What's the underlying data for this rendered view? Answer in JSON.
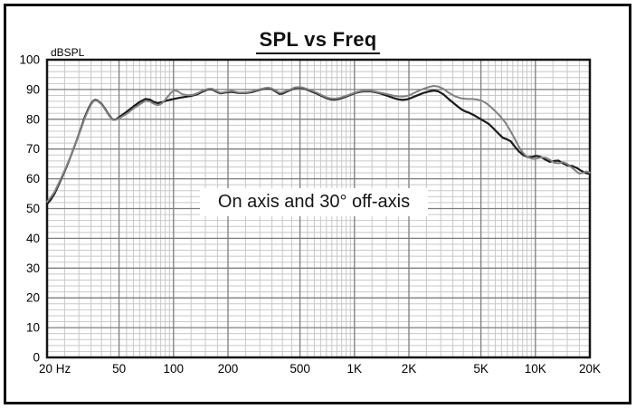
{
  "figure": {
    "title": "SPL vs Freq",
    "annotation": "On axis and 30° off-axis"
  },
  "chart_data": {
    "type": "line",
    "title": "SPL vs Freq",
    "xlabel": "",
    "ylabel": "dBSPL",
    "x_scale": "log",
    "xlim": [
      20,
      20000
    ],
    "ylim": [
      0,
      100
    ],
    "grid": {
      "minor_color": "#c8c8c8",
      "major_color": "#7d7d7d",
      "y_minor_step": 2,
      "y_major_step": 10,
      "x_minor_multipliers": [
        1.25,
        1.5,
        1.75,
        2.5,
        3,
        3.5,
        4,
        4.5,
        5.5,
        6,
        6.5,
        7,
        7.5,
        8,
        8.5,
        9,
        9.5
      ],
      "x_decades": [
        10,
        100,
        1000,
        10000
      ]
    },
    "y_ticks": [
      0,
      10,
      20,
      30,
      40,
      50,
      60,
      70,
      80,
      90,
      100
    ],
    "x_ticks": [
      {
        "value": 20,
        "label": "20 Hz"
      },
      {
        "value": 50,
        "label": "50"
      },
      {
        "value": 100,
        "label": "100"
      },
      {
        "value": 200,
        "label": "200"
      },
      {
        "value": 500,
        "label": "500"
      },
      {
        "value": 1000,
        "label": "1K"
      },
      {
        "value": 2000,
        "label": "2K"
      },
      {
        "value": 5000,
        "label": "5K"
      },
      {
        "value": 10000,
        "label": "10K"
      },
      {
        "value": 20000,
        "label": "20K"
      }
    ],
    "annotation": "On axis and 30° off-axis",
    "series": [
      {
        "name": "On axis",
        "key": "on-axis",
        "color": "#1a1a1a",
        "width": 2.2,
        "points": [
          [
            20,
            51.5
          ],
          [
            21,
            53
          ],
          [
            22,
            55
          ],
          [
            23,
            57.5
          ],
          [
            24,
            60
          ],
          [
            25,
            62.5
          ],
          [
            26,
            65
          ],
          [
            27,
            67.5
          ],
          [
            28,
            70
          ],
          [
            29,
            72.5
          ],
          [
            30,
            75
          ],
          [
            31,
            77.5
          ],
          [
            32,
            80
          ],
          [
            33,
            82
          ],
          [
            34,
            83.8
          ],
          [
            35,
            85.2
          ],
          [
            36,
            86.2
          ],
          [
            37,
            86.5
          ],
          [
            38,
            86.3
          ],
          [
            40,
            85.2
          ],
          [
            42,
            83.4
          ],
          [
            44,
            81.4
          ],
          [
            46,
            79.9
          ],
          [
            48,
            79.9
          ],
          [
            50,
            80.7
          ],
          [
            55,
            82.5
          ],
          [
            60,
            84.3
          ],
          [
            65,
            85.8
          ],
          [
            70,
            86.8
          ],
          [
            74,
            86.6
          ],
          [
            78,
            85.8
          ],
          [
            82,
            85.4
          ],
          [
            86,
            85.7
          ],
          [
            92,
            86.3
          ],
          [
            100,
            86.8
          ],
          [
            108,
            87.2
          ],
          [
            116,
            87.5
          ],
          [
            125,
            87.8
          ],
          [
            135,
            88.4
          ],
          [
            145,
            89.3
          ],
          [
            155,
            90
          ],
          [
            163,
            90.1
          ],
          [
            172,
            89.3
          ],
          [
            182,
            88.7
          ],
          [
            195,
            89
          ],
          [
            210,
            89.2
          ],
          [
            230,
            88.8
          ],
          [
            250,
            88.8
          ],
          [
            270,
            89.1
          ],
          [
            300,
            89.9
          ],
          [
            320,
            90.3
          ],
          [
            335,
            90.4
          ],
          [
            350,
            90.1
          ],
          [
            370,
            89.2
          ],
          [
            385,
            88.5
          ],
          [
            400,
            88.6
          ],
          [
            420,
            89.2
          ],
          [
            450,
            90
          ],
          [
            470,
            90.5
          ],
          [
            500,
            90.6
          ],
          [
            520,
            90.4
          ],
          [
            545,
            90
          ],
          [
            580,
            89.3
          ],
          [
            620,
            88.6
          ],
          [
            660,
            87.8
          ],
          [
            700,
            87.1
          ],
          [
            740,
            86.7
          ],
          [
            780,
            86.6
          ],
          [
            820,
            86.8
          ],
          [
            880,
            87.4
          ],
          [
            950,
            88.2
          ],
          [
            1020,
            88.9
          ],
          [
            1100,
            89.3
          ],
          [
            1180,
            89.4
          ],
          [
            1250,
            89.3
          ],
          [
            1350,
            88.9
          ],
          [
            1450,
            88.3
          ],
          [
            1550,
            87.7
          ],
          [
            1650,
            87.1
          ],
          [
            1750,
            86.7
          ],
          [
            1850,
            86.5
          ],
          [
            1950,
            86.7
          ],
          [
            2050,
            87.1
          ],
          [
            2200,
            87.9
          ],
          [
            2400,
            88.8
          ],
          [
            2600,
            89.4
          ],
          [
            2750,
            89.6
          ],
          [
            2900,
            89.4
          ],
          [
            3100,
            88.4
          ],
          [
            3300,
            86.9
          ],
          [
            3600,
            85
          ],
          [
            3900,
            83.3
          ],
          [
            4100,
            82.6
          ],
          [
            4300,
            82.2
          ],
          [
            4600,
            81.3
          ],
          [
            4900,
            80.3
          ],
          [
            5200,
            79.4
          ],
          [
            5500,
            78.5
          ],
          [
            5800,
            77.2
          ],
          [
            6200,
            75.4
          ],
          [
            6600,
            73.8
          ],
          [
            7000,
            73.2
          ],
          [
            7300,
            72.6
          ],
          [
            7700,
            70.8
          ],
          [
            8100,
            69.2
          ],
          [
            8600,
            67.9
          ],
          [
            9100,
            67.3
          ],
          [
            9600,
            67.4
          ],
          [
            10100,
            67.7
          ],
          [
            10700,
            67.4
          ],
          [
            11300,
            66.5
          ],
          [
            12000,
            65.7
          ],
          [
            12700,
            66
          ],
          [
            13400,
            66.1
          ],
          [
            14200,
            65.2
          ],
          [
            15000,
            64.5
          ],
          [
            16000,
            64.3
          ],
          [
            17000,
            63.6
          ],
          [
            18000,
            62.6
          ],
          [
            19000,
            61.9
          ],
          [
            20000,
            61.7
          ]
        ]
      },
      {
        "name": "30° off-axis",
        "key": "30-off-axis",
        "color": "#828282",
        "width": 2,
        "points": [
          [
            20,
            52.3
          ],
          [
            21,
            53.8
          ],
          [
            22,
            55.6
          ],
          [
            23,
            58
          ],
          [
            24,
            60.4
          ],
          [
            25,
            62.8
          ],
          [
            26,
            65.2
          ],
          [
            27,
            67.6
          ],
          [
            28,
            70
          ],
          [
            29,
            72.4
          ],
          [
            30,
            74.8
          ],
          [
            31,
            77.2
          ],
          [
            32,
            79.6
          ],
          [
            33,
            81.6
          ],
          [
            34,
            83.4
          ],
          [
            35,
            84.9
          ],
          [
            36,
            86
          ],
          [
            37,
            86.3
          ],
          [
            38,
            86.1
          ],
          [
            40,
            85
          ],
          [
            42,
            83.2
          ],
          [
            44,
            81.2
          ],
          [
            46,
            79.8
          ],
          [
            48,
            79.8
          ],
          [
            50,
            80.3
          ],
          [
            55,
            81.8
          ],
          [
            60,
            83.6
          ],
          [
            65,
            85
          ],
          [
            70,
            86.2
          ],
          [
            74,
            86
          ],
          [
            78,
            85.2
          ],
          [
            82,
            84.7
          ],
          [
            86,
            85.3
          ],
          [
            90,
            86.5
          ],
          [
            94,
            88
          ],
          [
            98,
            89.2
          ],
          [
            102,
            89.7
          ],
          [
            106,
            89.3
          ],
          [
            112,
            88.4
          ],
          [
            120,
            88.1
          ],
          [
            128,
            88.2
          ],
          [
            135,
            88.7
          ],
          [
            145,
            89.6
          ],
          [
            155,
            90.2
          ],
          [
            163,
            90.3
          ],
          [
            172,
            89.5
          ],
          [
            182,
            88.9
          ],
          [
            195,
            89.2
          ],
          [
            210,
            89.5
          ],
          [
            230,
            89
          ],
          [
            250,
            89
          ],
          [
            270,
            89.3
          ],
          [
            300,
            90.1
          ],
          [
            320,
            90.5
          ],
          [
            335,
            90.6
          ],
          [
            350,
            90.3
          ],
          [
            370,
            89.5
          ],
          [
            385,
            88.9
          ],
          [
            400,
            89
          ],
          [
            420,
            89.5
          ],
          [
            450,
            90.2
          ],
          [
            470,
            90.7
          ],
          [
            500,
            90.8
          ],
          [
            520,
            90.6
          ],
          [
            545,
            90.2
          ],
          [
            580,
            89.6
          ],
          [
            620,
            88.9
          ],
          [
            660,
            88.1
          ],
          [
            700,
            87.4
          ],
          [
            740,
            87
          ],
          [
            780,
            86.9
          ],
          [
            820,
            87.1
          ],
          [
            880,
            87.7
          ],
          [
            950,
            88.4
          ],
          [
            1020,
            89.1
          ],
          [
            1100,
            89.5
          ],
          [
            1180,
            89.6
          ],
          [
            1250,
            89.5
          ],
          [
            1350,
            89.1
          ],
          [
            1450,
            88.7
          ],
          [
            1550,
            88.3
          ],
          [
            1650,
            87.9
          ],
          [
            1750,
            87.7
          ],
          [
            1850,
            87.6
          ],
          [
            1950,
            87.8
          ],
          [
            2050,
            88.3
          ],
          [
            2200,
            89.2
          ],
          [
            2400,
            90.2
          ],
          [
            2600,
            90.9
          ],
          [
            2750,
            91.2
          ],
          [
            2900,
            91
          ],
          [
            3100,
            90.2
          ],
          [
            3300,
            89
          ],
          [
            3600,
            87.7
          ],
          [
            3900,
            87
          ],
          [
            4200,
            86.8
          ],
          [
            4500,
            86.8
          ],
          [
            4800,
            86.6
          ],
          [
            5100,
            86.1
          ],
          [
            5400,
            85.2
          ],
          [
            5700,
            84
          ],
          [
            6000,
            82.7
          ],
          [
            6400,
            81
          ],
          [
            6800,
            79
          ],
          [
            7200,
            76.6
          ],
          [
            7600,
            74
          ],
          [
            8000,
            71.4
          ],
          [
            8400,
            69.3
          ],
          [
            8800,
            67.9
          ],
          [
            9200,
            67.1
          ],
          [
            9700,
            66.7
          ],
          [
            10200,
            66.8
          ],
          [
            10800,
            67.2
          ],
          [
            11400,
            67.1
          ],
          [
            12000,
            66.4
          ],
          [
            12700,
            65.4
          ],
          [
            13400,
            65.2
          ],
          [
            14200,
            65.6
          ],
          [
            15000,
            65
          ],
          [
            15800,
            63.9
          ],
          [
            16600,
            62.8
          ],
          [
            17400,
            61.8
          ],
          [
            18200,
            61.9
          ],
          [
            19100,
            62.5
          ],
          [
            20000,
            62.1
          ]
        ]
      }
    ]
  }
}
